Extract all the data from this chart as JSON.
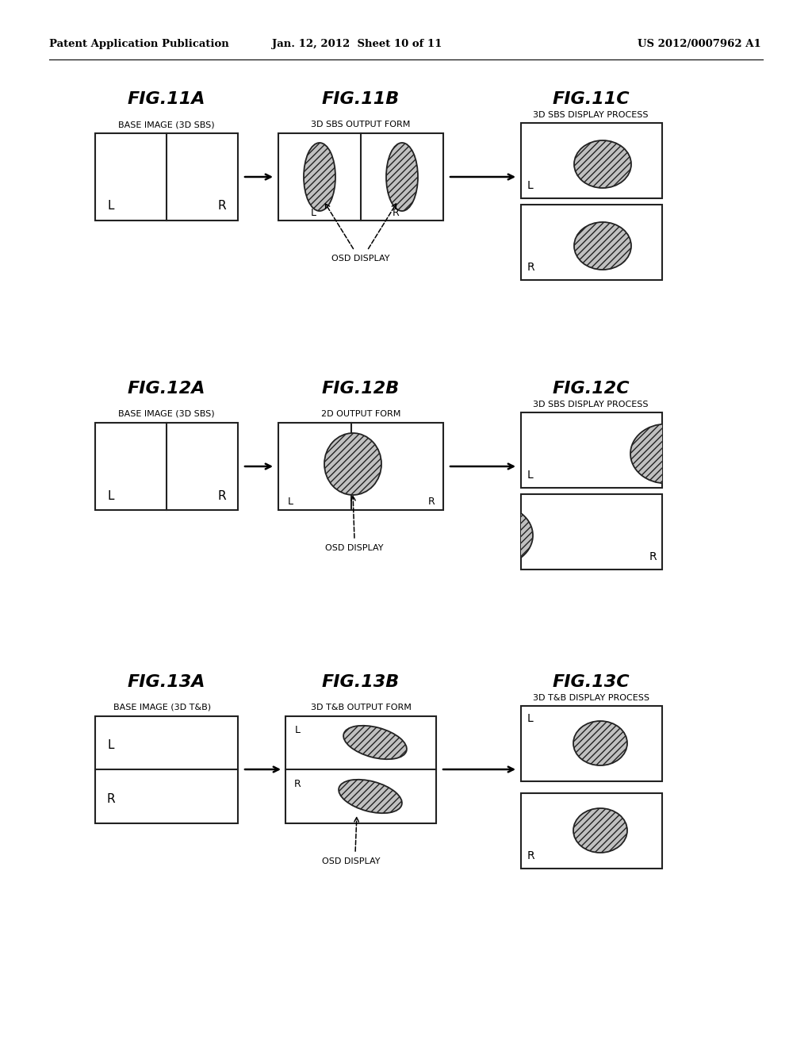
{
  "header_left": "Patent Application Publication",
  "header_mid": "Jan. 12, 2012  Sheet 10 of 11",
  "header_right": "US 2012/0007962 A1",
  "background_color": "#ffffff"
}
